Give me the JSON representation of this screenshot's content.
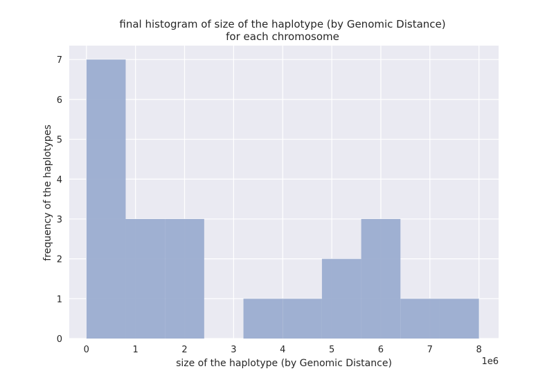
{
  "chart_data": {
    "type": "bar",
    "title_lines": [
      "final histogram of size of the haplotype (by Genomic Distance)",
      "for each chromosome"
    ],
    "xlabel": "size of the haplotype (by Genomic Distance)",
    "ylabel": "frequency of the haplotypes",
    "x_offset_label": "1e6",
    "x_ticks": [
      0,
      1,
      2,
      3,
      4,
      5,
      6,
      7,
      8
    ],
    "y_ticks": [
      0,
      1,
      2,
      3,
      4,
      5,
      6,
      7
    ],
    "xlim": [
      -0.35,
      8.4
    ],
    "ylim": [
      0,
      7.35
    ],
    "bins": [
      {
        "x0": 0.0,
        "x1": 0.8,
        "count": 7
      },
      {
        "x0": 0.8,
        "x1": 1.6,
        "count": 3
      },
      {
        "x0": 1.6,
        "x1": 2.4,
        "count": 3
      },
      {
        "x0": 2.4,
        "x1": 3.2,
        "count": 0
      },
      {
        "x0": 3.2,
        "x1": 4.0,
        "count": 1
      },
      {
        "x0": 4.0,
        "x1": 4.8,
        "count": 1
      },
      {
        "x0": 4.8,
        "x1": 5.6,
        "count": 2
      },
      {
        "x0": 5.6,
        "x1": 6.4,
        "count": 3
      },
      {
        "x0": 6.4,
        "x1": 7.2,
        "count": 1
      },
      {
        "x0": 7.2,
        "x1": 8.0,
        "count": 1
      }
    ],
    "colors": {
      "bar": "#9badd0",
      "plot_background": "#eaeaf2",
      "grid": "#ffffff"
    },
    "grid": true
  }
}
